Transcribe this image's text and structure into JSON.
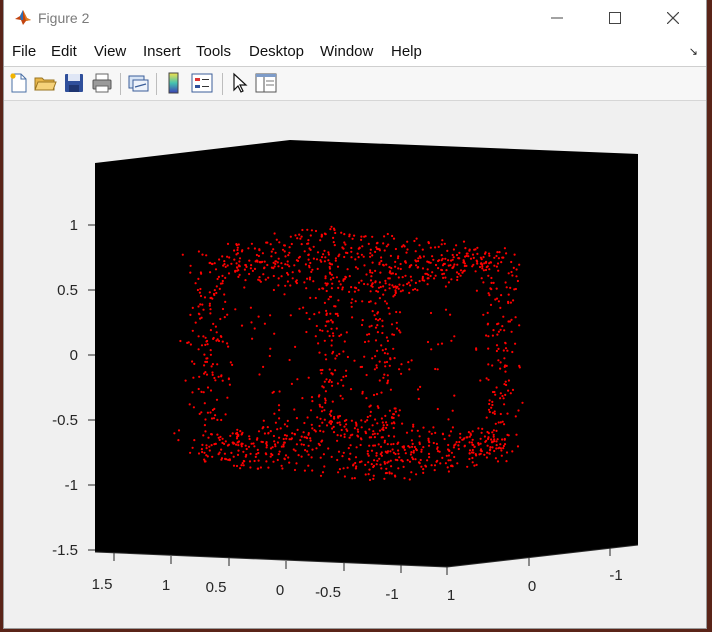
{
  "window": {
    "title": "Figure 2"
  },
  "menu": {
    "items": [
      "File",
      "Edit",
      "View",
      "Insert",
      "Tools",
      "Desktop",
      "Window",
      "Help"
    ]
  },
  "toolbar": {
    "buttons": [
      "new-figure",
      "open-file",
      "save",
      "print",
      "link-plot",
      "insert-colorbar",
      "insert-legend",
      "edit-plot",
      "property-inspector"
    ]
  },
  "chart_data": {
    "type": "scatter",
    "projection": "3d",
    "background": "#000000",
    "marker_color": "#ff0000",
    "z_ticks": [
      "-1.5",
      "-1",
      "-0.5",
      "0",
      "0.5",
      "1"
    ],
    "x_ticks": [
      "1.5",
      "1",
      "0.5",
      "0",
      "-0.5",
      "-1",
      "1"
    ],
    "y_ticks": [
      "0",
      "-1"
    ],
    "zlim": [
      -1.5,
      1.5
    ],
    "point_count": 1700,
    "structure": "cube-edge point cloud"
  }
}
